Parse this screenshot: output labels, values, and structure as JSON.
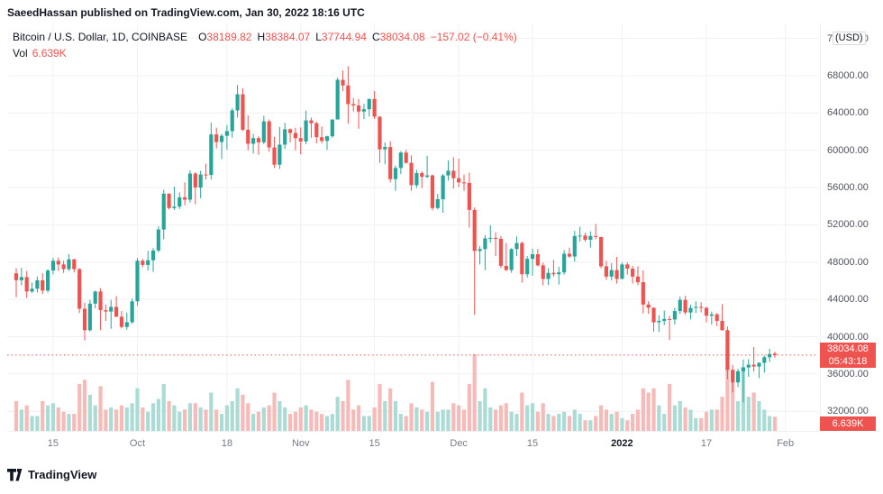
{
  "header": {
    "publish_line": "SaeedHassan published on TradingView.com, Jan 30, 2022 18:16 UTC"
  },
  "legend": {
    "symbol_title": "Bitcoin / U.S. Dollar, 1D, COINBASE",
    "open_label": "O",
    "open_value": "38189.82",
    "high_label": "H",
    "high_value": "38384.07",
    "low_label": "L",
    "low_value": "37744.94",
    "close_label": "C",
    "close_value": "38034.08",
    "change_value": "−157.02 (−0.41%)",
    "volume_label": "Vol",
    "volume_value": "6.639K"
  },
  "price_axis": {
    "unit": "(USD)",
    "last_price_label": "38034.08",
    "countdown": "05:43:18",
    "volume_badge": "6.639K"
  },
  "footer": {
    "brand": "TradingView"
  },
  "colors": {
    "up": "#26a69a",
    "down": "#ef5350",
    "vol_up": "#aadcd5",
    "vol_down": "#f6bab8",
    "grid": "#eef1f6",
    "axis_text": "#50535e",
    "accent_red": "#ef5350"
  },
  "chart_data": {
    "type": "candlestick+volume",
    "title": "Bitcoin / U.S. Dollar, 1D, COINBASE",
    "interval": "1D",
    "exchange": "COINBASE",
    "ylim": [
      29900,
      73600
    ],
    "y_gridlines": [
      32000,
      36000,
      40000,
      44000,
      48000,
      52000,
      56000,
      60000,
      64000,
      68000,
      72000
    ],
    "unit_tick": 72000,
    "last_price": 38034.08,
    "volume_scale_max_k": 36,
    "x_ticks": [
      {
        "label": "15",
        "index": 7
      },
      {
        "label": "Oct",
        "index": 23
      },
      {
        "label": "18",
        "index": 40
      },
      {
        "label": "Nov",
        "index": 54
      },
      {
        "label": "15",
        "index": 68
      },
      {
        "label": "Dec",
        "index": 84
      },
      {
        "label": "15",
        "index": 98
      },
      {
        "label": "2022",
        "index": 115,
        "bold": true
      },
      {
        "label": "17",
        "index": 131
      },
      {
        "label": "Feb",
        "index": 146
      }
    ],
    "columns": [
      "date",
      "open",
      "high",
      "low",
      "close",
      "volume_k"
    ],
    "candles": [
      [
        "2021-09-08",
        46800,
        47350,
        44250,
        46060,
        14
      ],
      [
        "2021-09-09",
        46060,
        47400,
        45500,
        46400,
        10
      ],
      [
        "2021-09-10",
        46400,
        47050,
        44150,
        44850,
        12
      ],
      [
        "2021-09-11",
        44850,
        45800,
        44700,
        45150,
        7
      ],
      [
        "2021-09-12",
        45150,
        46450,
        44750,
        46050,
        7
      ],
      [
        "2021-09-13",
        46050,
        46800,
        44600,
        44950,
        14
      ],
      [
        "2021-09-14",
        44950,
        47250,
        44750,
        47100,
        12
      ],
      [
        "2021-09-15",
        47100,
        48450,
        46700,
        48150,
        13
      ],
      [
        "2021-09-16",
        48150,
        48500,
        47050,
        47750,
        11
      ],
      [
        "2021-09-17",
        47750,
        48150,
        46850,
        47250,
        9
      ],
      [
        "2021-09-18",
        47250,
        48850,
        47050,
        48300,
        8
      ],
      [
        "2021-09-19",
        48300,
        48350,
        46900,
        47250,
        8
      ],
      [
        "2021-09-20",
        47250,
        47350,
        42550,
        43000,
        22
      ],
      [
        "2021-09-21",
        43000,
        43650,
        39600,
        40700,
        24
      ],
      [
        "2021-09-22",
        40700,
        43950,
        40550,
        43550,
        17
      ],
      [
        "2021-09-23",
        43550,
        44950,
        43050,
        44850,
        12
      ],
      [
        "2021-09-24",
        44850,
        45200,
        40700,
        42850,
        21
      ],
      [
        "2021-09-25",
        42850,
        43450,
        41700,
        42700,
        10
      ],
      [
        "2021-09-26",
        42700,
        43950,
        40850,
        43200,
        11
      ],
      [
        "2021-09-27",
        43200,
        44350,
        42100,
        42150,
        10
      ],
      [
        "2021-09-28",
        42150,
        42750,
        40900,
        41050,
        12
      ],
      [
        "2021-09-29",
        41050,
        42600,
        40750,
        41550,
        11
      ],
      [
        "2021-09-30",
        41550,
        44100,
        41400,
        43800,
        13
      ],
      [
        "2021-10-01",
        43800,
        48450,
        43300,
        48150,
        20
      ],
      [
        "2021-10-02",
        48150,
        48350,
        47450,
        47700,
        11
      ],
      [
        "2021-10-03",
        47700,
        49200,
        47100,
        48200,
        9
      ],
      [
        "2021-10-04",
        48200,
        49500,
        46950,
        49250,
        13
      ],
      [
        "2021-10-05",
        49250,
        51850,
        49050,
        51500,
        15
      ],
      [
        "2021-10-06",
        51500,
        55750,
        50450,
        55350,
        22
      ],
      [
        "2021-10-07",
        55350,
        55350,
        53650,
        53800,
        14
      ],
      [
        "2021-10-08",
        53800,
        56100,
        53600,
        53950,
        12
      ],
      [
        "2021-10-09",
        53950,
        55500,
        53700,
        54950,
        9
      ],
      [
        "2021-10-10",
        54950,
        56550,
        54100,
        54700,
        10
      ],
      [
        "2021-10-11",
        54700,
        57850,
        54400,
        57500,
        13
      ],
      [
        "2021-10-12",
        57500,
        57650,
        54200,
        56000,
        13
      ],
      [
        "2021-10-13",
        56000,
        57800,
        54850,
        57400,
        11
      ],
      [
        "2021-10-14",
        57400,
        58550,
        56850,
        57350,
        10
      ],
      [
        "2021-10-15",
        57350,
        62950,
        56850,
        61700,
        18
      ],
      [
        "2021-10-16",
        61700,
        62400,
        60200,
        60875,
        10
      ],
      [
        "2021-10-17",
        60875,
        61750,
        59050,
        61550,
        8
      ],
      [
        "2021-10-18",
        61550,
        62700,
        60050,
        62050,
        12
      ],
      [
        "2021-10-19",
        62050,
        64500,
        61350,
        64275,
        14
      ],
      [
        "2021-10-20",
        64275,
        67000,
        63500,
        66000,
        20
      ],
      [
        "2021-10-21",
        66000,
        66650,
        62050,
        62200,
        17
      ],
      [
        "2021-10-22",
        62200,
        63750,
        60000,
        60700,
        13
      ],
      [
        "2021-10-23",
        60700,
        61750,
        59650,
        61300,
        8
      ],
      [
        "2021-10-24",
        61300,
        61500,
        59500,
        60850,
        9
      ],
      [
        "2021-10-25",
        60850,
        63700,
        60650,
        63100,
        11
      ],
      [
        "2021-10-26",
        63100,
        63300,
        59850,
        60300,
        12
      ],
      [
        "2021-10-27",
        60300,
        61450,
        58100,
        58450,
        18
      ],
      [
        "2021-10-28",
        58450,
        62500,
        58000,
        60600,
        14
      ],
      [
        "2021-10-29",
        60600,
        62950,
        60150,
        62250,
        11
      ],
      [
        "2021-10-30",
        62250,
        62350,
        60850,
        61850,
        8
      ],
      [
        "2021-10-31",
        61850,
        62400,
        60000,
        61300,
        9
      ],
      [
        "2021-11-01",
        61300,
        62450,
        59550,
        60950,
        11
      ],
      [
        "2021-11-02",
        60950,
        64250,
        60650,
        63200,
        12
      ],
      [
        "2021-11-03",
        63200,
        63500,
        61350,
        62900,
        10
      ],
      [
        "2021-11-04",
        62900,
        63050,
        60750,
        61400,
        9
      ],
      [
        "2021-11-05",
        61400,
        62550,
        60750,
        61000,
        8
      ],
      [
        "2021-11-06",
        61000,
        61550,
        60050,
        61500,
        7
      ],
      [
        "2021-11-07",
        61500,
        63300,
        61350,
        63300,
        8
      ],
      [
        "2021-11-08",
        63300,
        67800,
        63300,
        67550,
        16
      ],
      [
        "2021-11-09",
        67550,
        68550,
        66350,
        66950,
        14
      ],
      [
        "2021-11-10",
        66950,
        69000,
        62850,
        64950,
        24
      ],
      [
        "2021-11-11",
        64950,
        65600,
        64150,
        64800,
        10
      ],
      [
        "2021-11-12",
        64800,
        65500,
        62300,
        64150,
        12
      ],
      [
        "2021-11-13",
        64150,
        64975,
        63350,
        64400,
        7
      ],
      [
        "2021-11-14",
        64400,
        65550,
        63600,
        65500,
        7
      ],
      [
        "2021-11-15",
        65500,
        66350,
        63350,
        63600,
        11
      ],
      [
        "2021-11-16",
        63600,
        63650,
        58650,
        60100,
        22
      ],
      [
        "2021-11-17",
        60100,
        60850,
        58500,
        60350,
        14
      ],
      [
        "2021-11-18",
        60350,
        60950,
        56550,
        56900,
        20
      ],
      [
        "2021-11-19",
        56900,
        58350,
        55650,
        58100,
        14
      ],
      [
        "2021-11-20",
        58100,
        59900,
        57450,
        59750,
        8
      ],
      [
        "2021-11-21",
        59750,
        60050,
        58550,
        58650,
        7
      ],
      [
        "2021-11-22",
        58650,
        59450,
        55650,
        56250,
        13
      ],
      [
        "2021-11-23",
        56250,
        57900,
        55950,
        57550,
        11
      ],
      [
        "2021-11-24",
        57550,
        57750,
        55950,
        57150,
        10
      ],
      [
        "2021-11-25",
        57150,
        59400,
        57000,
        57300,
        9
      ],
      [
        "2021-11-26",
        57300,
        57400,
        53550,
        53800,
        23
      ],
      [
        "2021-11-27",
        53800,
        55300,
        53650,
        54750,
        9
      ],
      [
        "2021-11-28",
        54750,
        57450,
        53300,
        57300,
        10
      ],
      [
        "2021-11-29",
        57300,
        58900,
        56750,
        57800,
        10
      ],
      [
        "2021-11-30",
        57800,
        59250,
        55900,
        57000,
        13
      ],
      [
        "2021-12-01",
        57000,
        59100,
        56050,
        56550,
        12
      ],
      [
        "2021-12-02",
        56550,
        57400,
        55650,
        56500,
        10
      ],
      [
        "2021-12-03",
        56500,
        57600,
        51700,
        53600,
        22
      ],
      [
        "2021-12-04",
        53600,
        53850,
        42350,
        49200,
        36
      ],
      [
        "2021-12-05",
        49200,
        49700,
        47750,
        49400,
        14
      ],
      [
        "2021-12-06",
        49400,
        50900,
        47150,
        50550,
        20
      ],
      [
        "2021-12-07",
        50550,
        51950,
        50100,
        50600,
        11
      ],
      [
        "2021-12-08",
        50600,
        51200,
        48650,
        50500,
        10
      ],
      [
        "2021-12-09",
        50500,
        50800,
        47350,
        47600,
        12
      ],
      [
        "2021-12-10",
        47600,
        50050,
        47050,
        47150,
        13
      ],
      [
        "2021-12-11",
        47150,
        49500,
        46850,
        49400,
        9
      ],
      [
        "2021-12-12",
        49400,
        50750,
        48650,
        50050,
        8
      ],
      [
        "2021-12-13",
        50050,
        50200,
        45800,
        46700,
        18
      ],
      [
        "2021-12-14",
        46700,
        48650,
        46350,
        48350,
        12
      ],
      [
        "2021-12-15",
        48350,
        49450,
        46550,
        48850,
        13
      ],
      [
        "2021-12-16",
        48850,
        49400,
        47550,
        47650,
        9
      ],
      [
        "2021-12-17",
        47650,
        47950,
        45500,
        46200,
        13
      ],
      [
        "2021-12-18",
        46200,
        47350,
        45550,
        46850,
        8
      ],
      [
        "2021-12-19",
        46850,
        48250,
        46450,
        46700,
        7
      ],
      [
        "2021-12-20",
        46700,
        47500,
        45600,
        46900,
        8
      ],
      [
        "2021-12-21",
        46900,
        49300,
        46650,
        48900,
        9
      ],
      [
        "2021-12-22",
        48900,
        49550,
        48450,
        48600,
        7
      ],
      [
        "2021-12-23",
        48600,
        51350,
        48050,
        50800,
        10
      ],
      [
        "2021-12-24",
        50800,
        51800,
        50200,
        50850,
        8
      ],
      [
        "2021-12-25",
        50850,
        51150,
        50200,
        50400,
        5
      ],
      [
        "2021-12-26",
        50400,
        51300,
        49550,
        50800,
        5
      ],
      [
        "2021-12-27",
        50800,
        52100,
        50450,
        50700,
        7
      ],
      [
        "2021-12-28",
        50700,
        50700,
        47350,
        47550,
        12
      ],
      [
        "2021-12-29",
        47550,
        48150,
        46100,
        46450,
        10
      ],
      [
        "2021-12-30",
        46450,
        47900,
        46050,
        47150,
        8
      ],
      [
        "2021-12-31",
        47150,
        48550,
        45700,
        46200,
        9
      ],
      [
        "2022-01-01",
        46200,
        47950,
        46200,
        47750,
        6
      ],
      [
        "2022-01-02",
        47750,
        47990,
        46650,
        47300,
        5
      ],
      [
        "2022-01-03",
        47300,
        47600,
        45700,
        46450,
        8
      ],
      [
        "2022-01-04",
        46450,
        47550,
        45550,
        45850,
        10
      ],
      [
        "2022-01-05",
        45850,
        47100,
        42500,
        43450,
        20
      ],
      [
        "2022-01-06",
        43450,
        43800,
        42450,
        43100,
        18
      ],
      [
        "2022-01-07",
        43100,
        43150,
        40550,
        41550,
        20
      ],
      [
        "2022-01-08",
        41550,
        42300,
        40500,
        41700,
        12
      ],
      [
        "2022-01-09",
        41700,
        42800,
        41250,
        41900,
        8
      ],
      [
        "2022-01-10",
        41900,
        42250,
        39650,
        41850,
        22
      ],
      [
        "2022-01-11",
        41850,
        43100,
        41300,
        42750,
        12
      ],
      [
        "2022-01-12",
        42750,
        44300,
        42450,
        43950,
        14
      ],
      [
        "2022-01-13",
        43950,
        44400,
        42350,
        42600,
        11
      ],
      [
        "2022-01-14",
        42600,
        43450,
        41850,
        43100,
        10
      ],
      [
        "2022-01-15",
        43100,
        43800,
        42550,
        43200,
        6
      ],
      [
        "2022-01-16",
        43200,
        43700,
        42600,
        43100,
        6
      ],
      [
        "2022-01-17",
        43100,
        43200,
        41550,
        42250,
        9
      ],
      [
        "2022-01-18",
        42250,
        42700,
        41300,
        42400,
        10
      ],
      [
        "2022-01-19",
        42400,
        42550,
        41150,
        41700,
        10
      ],
      [
        "2022-01-20",
        41700,
        43500,
        40650,
        40700,
        16
      ],
      [
        "2022-01-21",
        40700,
        41100,
        35450,
        36450,
        30
      ],
      [
        "2022-01-22",
        36450,
        36990,
        34050,
        35100,
        28
      ],
      [
        "2022-01-23",
        35100,
        36550,
        34600,
        36300,
        14
      ],
      [
        "2022-01-24",
        36300,
        37550,
        32950,
        36700,
        30
      ],
      [
        "2022-01-25",
        36700,
        37600,
        35700,
        37000,
        16
      ],
      [
        "2022-01-26",
        37000,
        38900,
        36250,
        36800,
        18
      ],
      [
        "2022-01-27",
        36800,
        37250,
        35550,
        37200,
        14
      ],
      [
        "2022-01-28",
        37200,
        38000,
        36150,
        37800,
        10
      ],
      [
        "2022-01-29",
        37800,
        38700,
        37300,
        38150,
        7
      ],
      [
        "2022-01-30",
        38189.82,
        38384.07,
        37744.94,
        38034.08,
        6.639
      ]
    ]
  }
}
